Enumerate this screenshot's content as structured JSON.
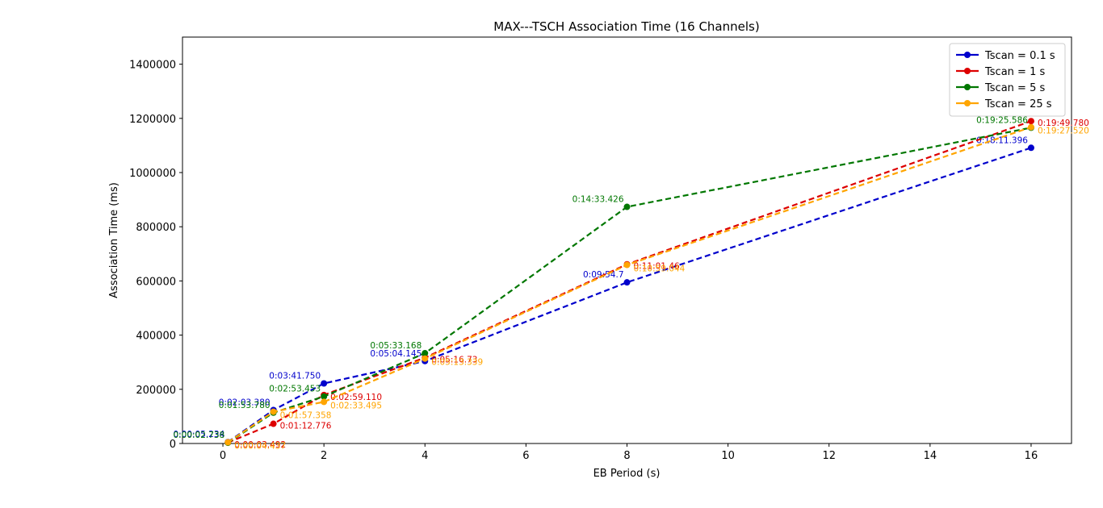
{
  "chart_data": {
    "type": "line",
    "title": "MAX---TSCH Association Time (16 Channels)",
    "xlabel": "EB Period (s)",
    "ylabel": "Association Time (ms)",
    "xlim": [
      -0.8,
      16.8
    ],
    "ylim": [
      0,
      1500000
    ],
    "xticks": [
      0,
      2,
      4,
      6,
      8,
      10,
      12,
      14,
      16
    ],
    "yticks": [
      0,
      200000,
      400000,
      600000,
      800000,
      1000000,
      1200000,
      1400000
    ],
    "grid": false,
    "legend_position": "top-right",
    "line_style": "dashed",
    "x": [
      0.1,
      1,
      2,
      4,
      8,
      16
    ],
    "series": [
      {
        "name": "Tscan = 0.1 s",
        "color": "#0000cc",
        "values": [
          5234,
          123380,
          221750,
          304145,
          594700,
          1091396
        ],
        "labels": [
          "0:00:05.234",
          "0:02:03.380",
          "0:03:41.750",
          "0:05:04.145",
          "0:09:54.7",
          "0:18:11.396"
        ]
      },
      {
        "name": "Tscan = 1 s",
        "color": "#dd0000",
        "values": [
          3492,
          72776,
          179110,
          316730,
          661460,
          1189780
        ],
        "labels": [
          "0:00:03.492",
          "0:01:12.776",
          "0:02:59.110",
          "0:05:16.73",
          "0:11:01.46",
          "0:19:49.780"
        ]
      },
      {
        "name": "Tscan = 5 s",
        "color": "#007700",
        "values": [
          2738,
          113780,
          173453,
          333168,
          873426,
          1165586
        ],
        "labels": [
          "0:00:02.738",
          "0:01:53.780",
          "0:02:53.453",
          "0:05:33.168",
          "0:14:33.426",
          "0:19:25.586"
        ]
      },
      {
        "name": "Tscan = 25 s",
        "color": "#ffa500",
        "values": [
          4437,
          117358,
          153495,
          313339,
          659044,
          1167520
        ],
        "labels": [
          "0:00:04.437",
          "0:01:57.358",
          "0:02:33.495",
          "0:05:13.339",
          "0:10:59.044",
          "0:19:27.520"
        ]
      }
    ]
  }
}
